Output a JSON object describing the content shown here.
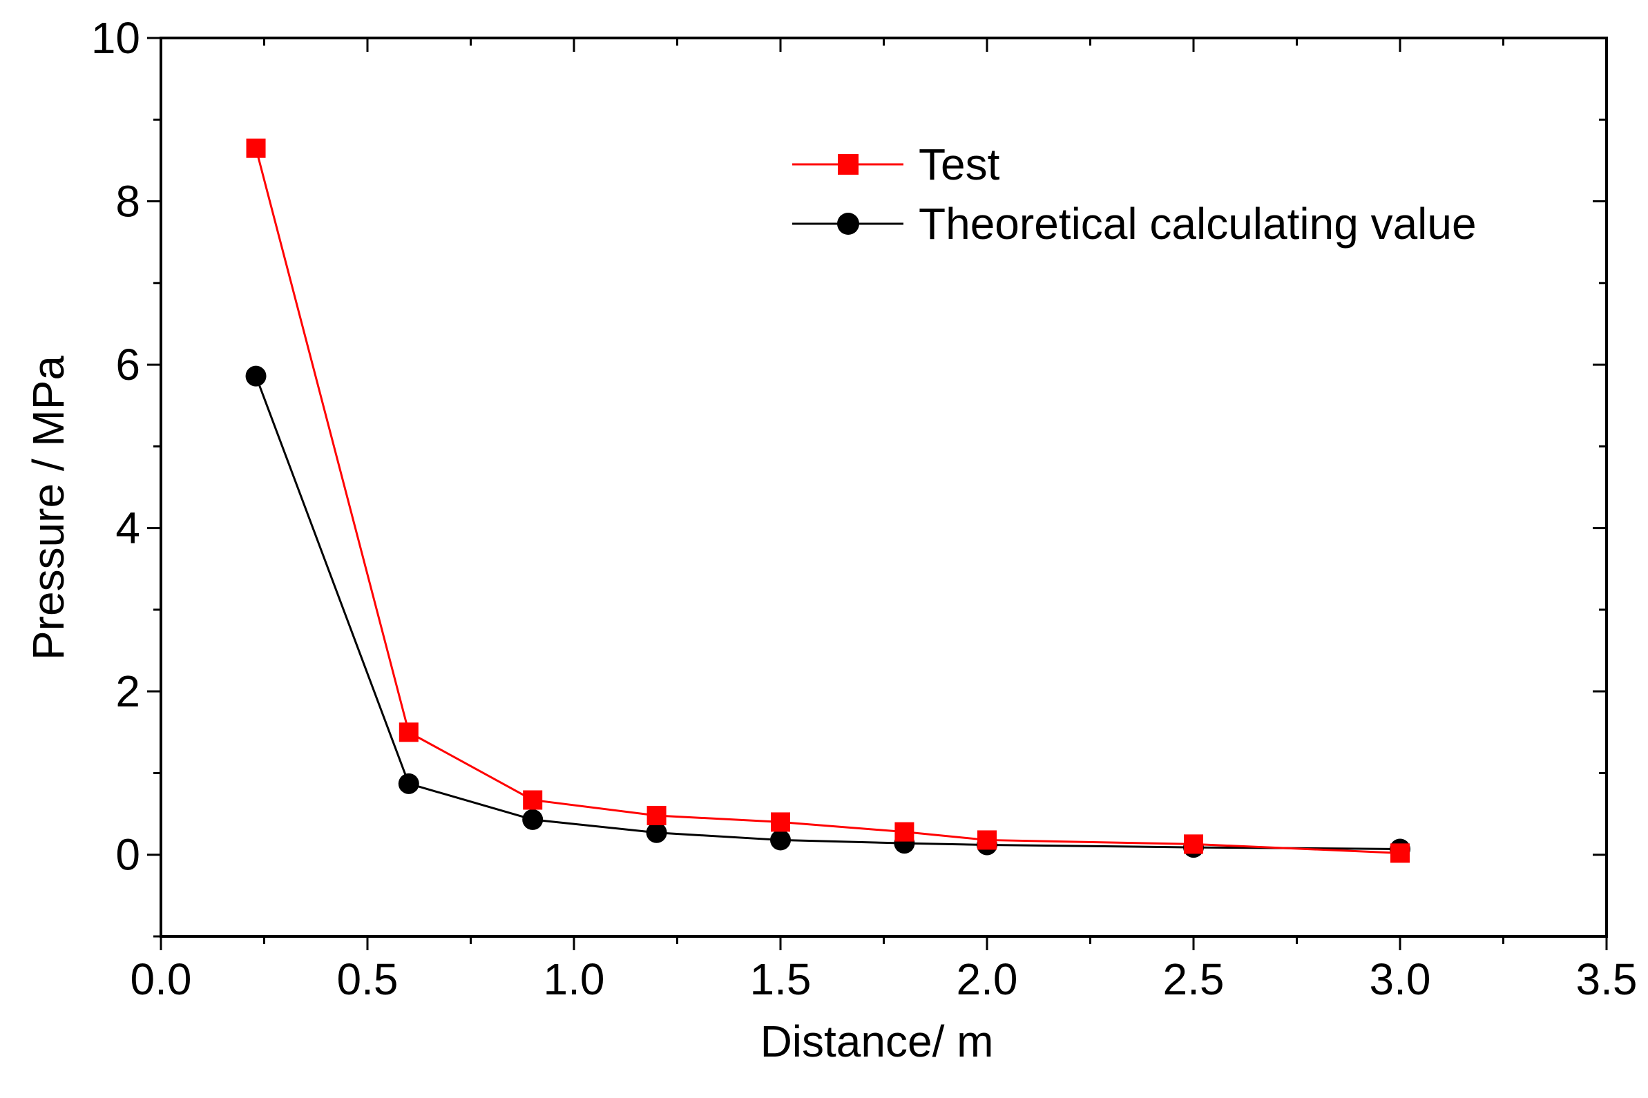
{
  "chart_data": {
    "type": "line",
    "title": "",
    "xlabel": "Distance/ m",
    "ylabel": "Pressure / MPa",
    "xlim": [
      0.0,
      3.5
    ],
    "ylim": [
      -1,
      10
    ],
    "x_ticks": [
      0.0,
      0.5,
      1.0,
      1.5,
      2.0,
      2.5,
      3.0,
      3.5
    ],
    "x_tick_labels": [
      "0.0",
      "0.5",
      "1.0",
      "1.5",
      "2.0",
      "2.5",
      "3.0",
      "3.5"
    ],
    "y_ticks": [
      0,
      2,
      4,
      6,
      8,
      10
    ],
    "y_tick_labels": [
      "0",
      "2",
      "4",
      "6",
      "8",
      "10"
    ],
    "grid": false,
    "legend_position": "top-right",
    "series": [
      {
        "name": "Test",
        "color": "#ff0000",
        "marker": "square",
        "x": [
          0.23,
          0.6,
          0.9,
          1.2,
          1.5,
          1.8,
          2.0,
          2.5,
          3.0
        ],
        "values": [
          8.65,
          1.5,
          0.67,
          0.48,
          0.4,
          0.28,
          0.18,
          0.13,
          0.02
        ]
      },
      {
        "name": "Theoretical calculating value",
        "color": "#000000",
        "marker": "circle",
        "x": [
          0.23,
          0.6,
          0.9,
          1.2,
          1.5,
          1.8,
          2.0,
          2.5,
          3.0
        ],
        "values": [
          5.86,
          0.87,
          0.43,
          0.27,
          0.18,
          0.14,
          0.12,
          0.09,
          0.07
        ]
      }
    ]
  }
}
